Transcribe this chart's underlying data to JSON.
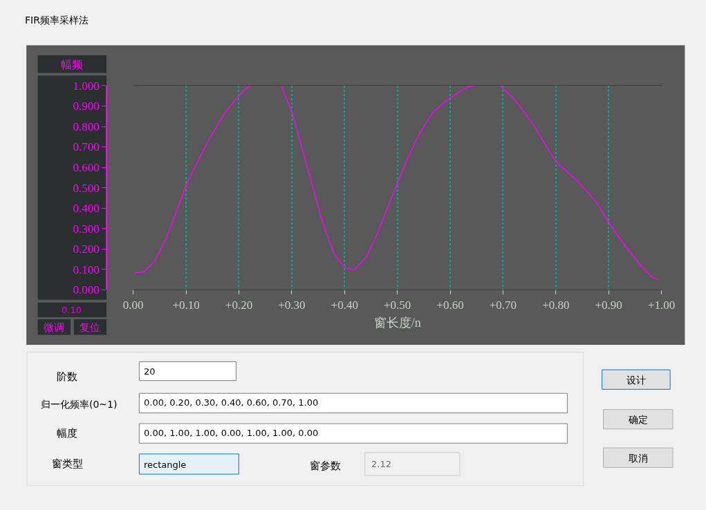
{
  "chart_data": {
    "type": "line",
    "title": "FIR频率采样法",
    "ylabel": "幅频",
    "xlabel": "窗长度/n",
    "x": [
      0,
      0.02,
      0.04,
      0.06,
      0.08,
      0.1,
      0.12,
      0.14,
      0.16,
      0.18,
      0.2,
      0.22,
      0.25,
      0.28,
      0.3,
      0.32,
      0.34,
      0.36,
      0.38,
      0.4,
      0.418,
      0.441,
      0.463,
      0.484,
      0.5,
      0.517,
      0.539,
      0.568,
      0.6,
      0.631,
      0.644,
      0.67,
      0.694,
      0.719,
      0.757,
      0.8,
      0.842,
      0.876,
      0.9,
      0.93,
      0.956,
      0.981,
      0.994
    ],
    "series": [
      {
        "color": "#ff00ff",
        "values": [
          0.08,
          0.09,
          0.14,
          0.24,
          0.37,
          0.51,
          0.62,
          0.72,
          0.81,
          0.89,
          0.95,
          1.0,
          null,
          1.0,
          0.87,
          0.69,
          0.5,
          0.32,
          0.18,
          0.11,
          0.1,
          0.16,
          0.28,
          0.42,
          0.52,
          0.63,
          0.75,
          0.87,
          0.94,
          0.99,
          1.0,
          null,
          1.0,
          0.94,
          0.81,
          0.63,
          0.53,
          0.43,
          0.33,
          0.22,
          0.135,
          0.063,
          0.05
        ]
      }
    ],
    "xlim": [
      0,
      1
    ],
    "ylim": [
      0,
      1
    ],
    "xticks": [
      {
        "value": 0,
        "label": "0.00"
      },
      {
        "value": 0.1,
        "label": "+0.10"
      },
      {
        "value": 0.2,
        "label": "+0.20"
      },
      {
        "value": 0.3,
        "label": "+0.30"
      },
      {
        "value": 0.4,
        "label": "+0.40"
      },
      {
        "value": 0.5,
        "label": "+0.50"
      },
      {
        "value": 0.6,
        "label": "+0.60"
      },
      {
        "value": 0.7,
        "label": "+0.70"
      },
      {
        "value": 0.8,
        "label": "+0.80"
      },
      {
        "value": 0.9,
        "label": "+0.90"
      },
      {
        "value": 1,
        "label": "+1.00"
      }
    ],
    "yticks": [
      {
        "value": 0,
        "label": "0.000"
      },
      {
        "value": 0.1,
        "label": "0.100"
      },
      {
        "value": 0.2,
        "label": "0.200"
      },
      {
        "value": 0.3,
        "label": "0.300"
      },
      {
        "value": 0.4,
        "label": "0.400"
      },
      {
        "value": 0.5,
        "label": "0.500"
      },
      {
        "value": 0.6,
        "label": "0.600"
      },
      {
        "value": 0.7,
        "label": "0.700"
      },
      {
        "value": 0.8,
        "label": "0.800"
      },
      {
        "value": 0.9,
        "label": "0.900"
      },
      {
        "value": 1,
        "label": "1.000"
      }
    ],
    "grid": "x",
    "line_style": "solid",
    "annotations": [
      "0.10",
      "微调",
      "复位",
      "阶数",
      "20",
      "归一化频率(0~1)",
      "0.00, 0.20, 0.30, 0.40, 0.60, 0.70, 1.00",
      "幅度",
      "0.00, 1.00, 1.00, 0.00, 1.00, 1.00, 0.00",
      "窗类型",
      "rectangle",
      "窗参数",
      "2.12",
      "设计",
      "确定",
      "取消"
    ]
  }
}
